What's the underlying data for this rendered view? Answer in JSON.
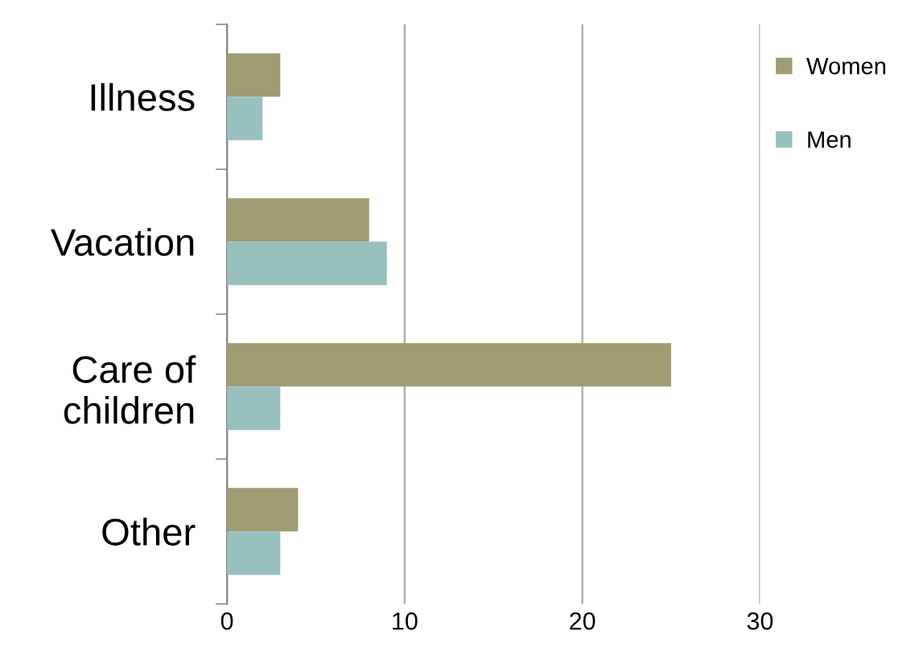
{
  "chart_data": {
    "type": "bar",
    "orientation": "horizontal",
    "categories": [
      "Illness",
      "Vacation",
      "Care of\nchildren",
      "Other"
    ],
    "series": [
      {
        "name": "Women",
        "color": "#a09c73",
        "values": [
          3,
          8,
          25,
          4
        ]
      },
      {
        "name": "Men",
        "color": "#97c0bf",
        "values": [
          2,
          9,
          3,
          3
        ]
      }
    ],
    "xlim": [
      0,
      30
    ],
    "xticks": [
      0,
      10,
      20,
      30
    ],
    "grid": "x",
    "legend": "top right"
  }
}
